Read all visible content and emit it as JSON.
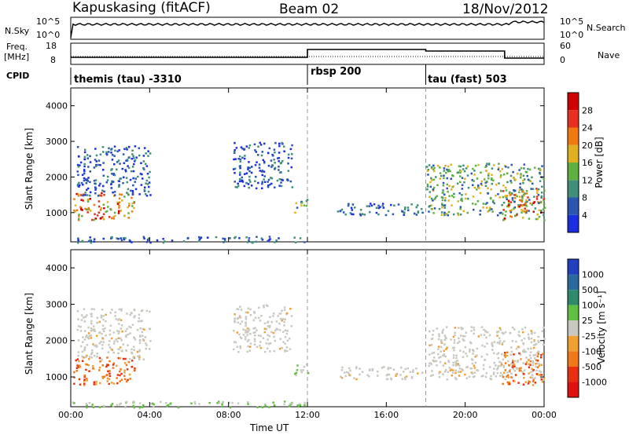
{
  "header": {
    "station": "Kapuskasing (fitACF)",
    "beam": "Beam 02",
    "date": "18/Nov/2012"
  },
  "left_labels": {
    "nsky": "N.Sky",
    "nsky_ticks": [
      "10^5",
      "10^0"
    ],
    "freq": "Freq.",
    "freq_unit": "[MHz]",
    "freq_ticks": [
      "18",
      "8"
    ],
    "cpid": "CPID"
  },
  "right_labels": {
    "nsearch": "N.Search",
    "nsearch_ticks": [
      "10^5",
      "10^0"
    ],
    "nave": "Nave",
    "nave_ticks": [
      "60",
      "0"
    ]
  },
  "cpid_segments": [
    {
      "label": "themis (tau) -3310",
      "start_hour": 0
    },
    {
      "label": "rbsp 200",
      "start_hour": 12
    },
    {
      "label": "tau (fast) 503",
      "start_hour": 18
    }
  ],
  "axes": {
    "y_label": "Slant Range [km]",
    "x_label": "Time UT",
    "x_ticks": [
      "00:00",
      "04:00",
      "08:00",
      "12:00",
      "16:00",
      "20:00",
      "00:00"
    ],
    "y_ticks": [
      "1000",
      "2000",
      "3000",
      "4000"
    ]
  },
  "colorbars": {
    "power": {
      "label": "Power [dB]",
      "ticks": [
        "4",
        "8",
        "12",
        "16",
        "20",
        "24",
        "28"
      ],
      "colors": [
        "#1a2ee0",
        "#2a55b0",
        "#3f8f7a",
        "#5fb040",
        "#e0b020",
        "#f07a10",
        "#e83020",
        "#d00000"
      ]
    },
    "velocity": {
      "label": "Velocity [m s⁻¹]",
      "ticks": [
        "1000",
        "500",
        "100",
        "25",
        "-25",
        "-100",
        "-500",
        "-1000"
      ],
      "colors": [
        "#2040c0",
        "#2a6aa0",
        "#2e8a6a",
        "#60c040",
        "#c8c8c0",
        "#f0a030",
        "#f07818",
        "#e83010",
        "#e01010"
      ]
    }
  },
  "chart_data": {
    "type": "heatmap",
    "x_range_hours": [
      0,
      24
    ],
    "y_range_km": [
      180,
      4500
    ],
    "vertical_markers_hours": [
      12,
      18
    ],
    "echo_regions": [
      {
        "t0": 0.1,
        "t1": 3.2,
        "r0": 800,
        "r1": 1600,
        "power": "high",
        "velocity": "negative"
      },
      {
        "t0": 0.3,
        "t1": 4.0,
        "r0": 1500,
        "r1": 2900,
        "power": "low",
        "velocity": "near-zero"
      },
      {
        "t0": 8.2,
        "t1": 11.2,
        "r0": 1700,
        "r1": 3000,
        "power": "low",
        "velocity": "near-zero"
      },
      {
        "t0": 11.3,
        "t1": 12.0,
        "r0": 1000,
        "r1": 1400,
        "power": "medium",
        "velocity": "positive"
      },
      {
        "t0": 13.5,
        "t1": 17.8,
        "r0": 950,
        "r1": 1300,
        "power": "low",
        "velocity": "near-zero"
      },
      {
        "t0": 18.0,
        "t1": 24.0,
        "r0": 950,
        "r1": 2400,
        "power": "medium",
        "velocity": "near-zero"
      },
      {
        "t0": 21.8,
        "t1": 24.0,
        "r0": 800,
        "r1": 1700,
        "power": "high",
        "velocity": "negative"
      },
      {
        "t0": 0.0,
        "t1": 12.0,
        "r0": 180,
        "r1": 350,
        "power": "low",
        "velocity": "positive"
      }
    ],
    "noise_sky_level": "10^5 near top, flat",
    "frequency_level_mhz": {
      "0-12": 10,
      "12-18": 14,
      "18-22": 13,
      "22-24": 9
    }
  }
}
